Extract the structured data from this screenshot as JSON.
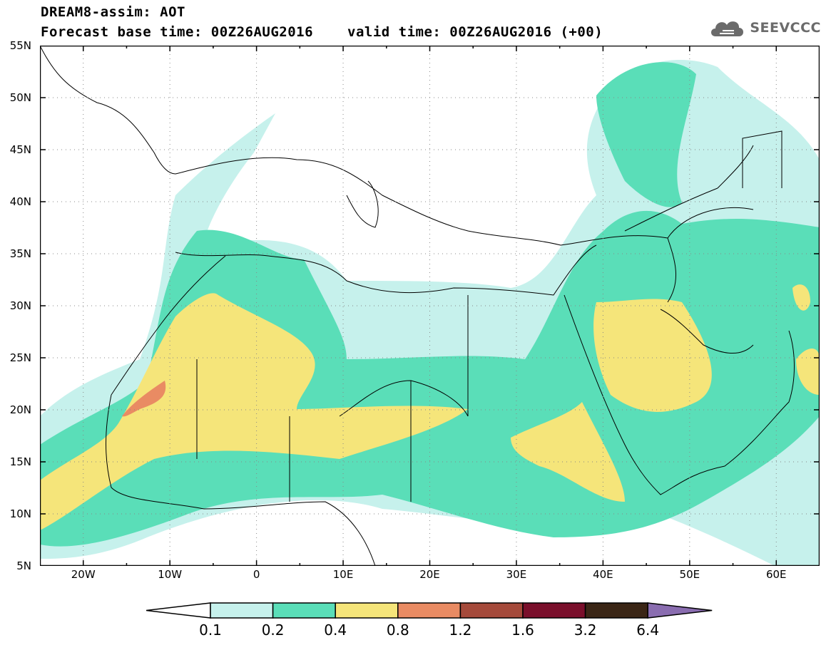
{
  "header": {
    "title": "DREAM8-assim: AOT",
    "base_time": "Forecast base time: 00Z26AUG2016",
    "valid_time": "valid time: 00Z26AUG2016 (+00)"
  },
  "logo": {
    "text": "SEEVCCC",
    "icon": "cloud-icon",
    "color": "#6b6b6b"
  },
  "map": {
    "extent": {
      "lon_min": -25,
      "lon_max": 65,
      "lat_min": 5,
      "lat_max": 55
    },
    "lat_ticks": [
      "55N",
      "50N",
      "45N",
      "40N",
      "35N",
      "30N",
      "25N",
      "20N",
      "15N",
      "10N",
      "5N"
    ],
    "lon_ticks": [
      "20W",
      "10W",
      "0",
      "10E",
      "20E",
      "30E",
      "40E",
      "50E",
      "60E"
    ],
    "grid": "dotted",
    "variable": "Aerosol optical thickness"
  },
  "colorbar": {
    "levels": [
      "0.1",
      "0.2",
      "0.4",
      "0.8",
      "1.2",
      "1.6",
      "3.2",
      "6.4"
    ],
    "colors": [
      "#ffffff",
      "#c6f1ec",
      "#5adeb8",
      "#f5e57a",
      "#e98b63",
      "#a54a3b",
      "#7a0f2b",
      "#3b2616",
      "#8a6db0"
    ]
  }
}
